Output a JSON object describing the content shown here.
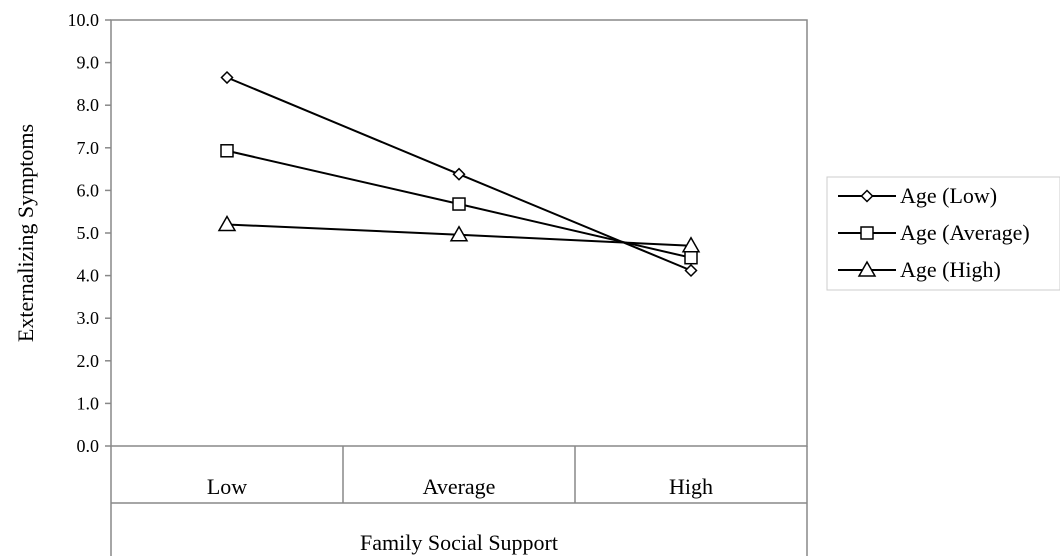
{
  "chart_data": {
    "type": "line",
    "title": "",
    "xlabel": "Family Social Support",
    "ylabel": "Externalizing Symptoms",
    "categories": [
      "Low",
      "Average",
      "High"
    ],
    "ylim": [
      0,
      10
    ],
    "yticks": [
      "0.0",
      "1.0",
      "2.0",
      "3.0",
      "4.0",
      "5.0",
      "6.0",
      "7.0",
      "8.0",
      "9.0",
      "10.0"
    ],
    "grid": false,
    "legend_position": "right",
    "series": [
      {
        "name": "Age (Low)",
        "marker": "diamond",
        "values": [
          8.65,
          6.38,
          4.12
        ]
      },
      {
        "name": "Age (Average)",
        "marker": "square",
        "values": [
          6.93,
          5.68,
          4.42
        ]
      },
      {
        "name": "Age (High)",
        "marker": "triangle",
        "values": [
          5.2,
          4.96,
          4.7
        ]
      }
    ],
    "colors": {
      "line": "#000000",
      "axis": "#888888",
      "background": "#ffffff"
    }
  }
}
